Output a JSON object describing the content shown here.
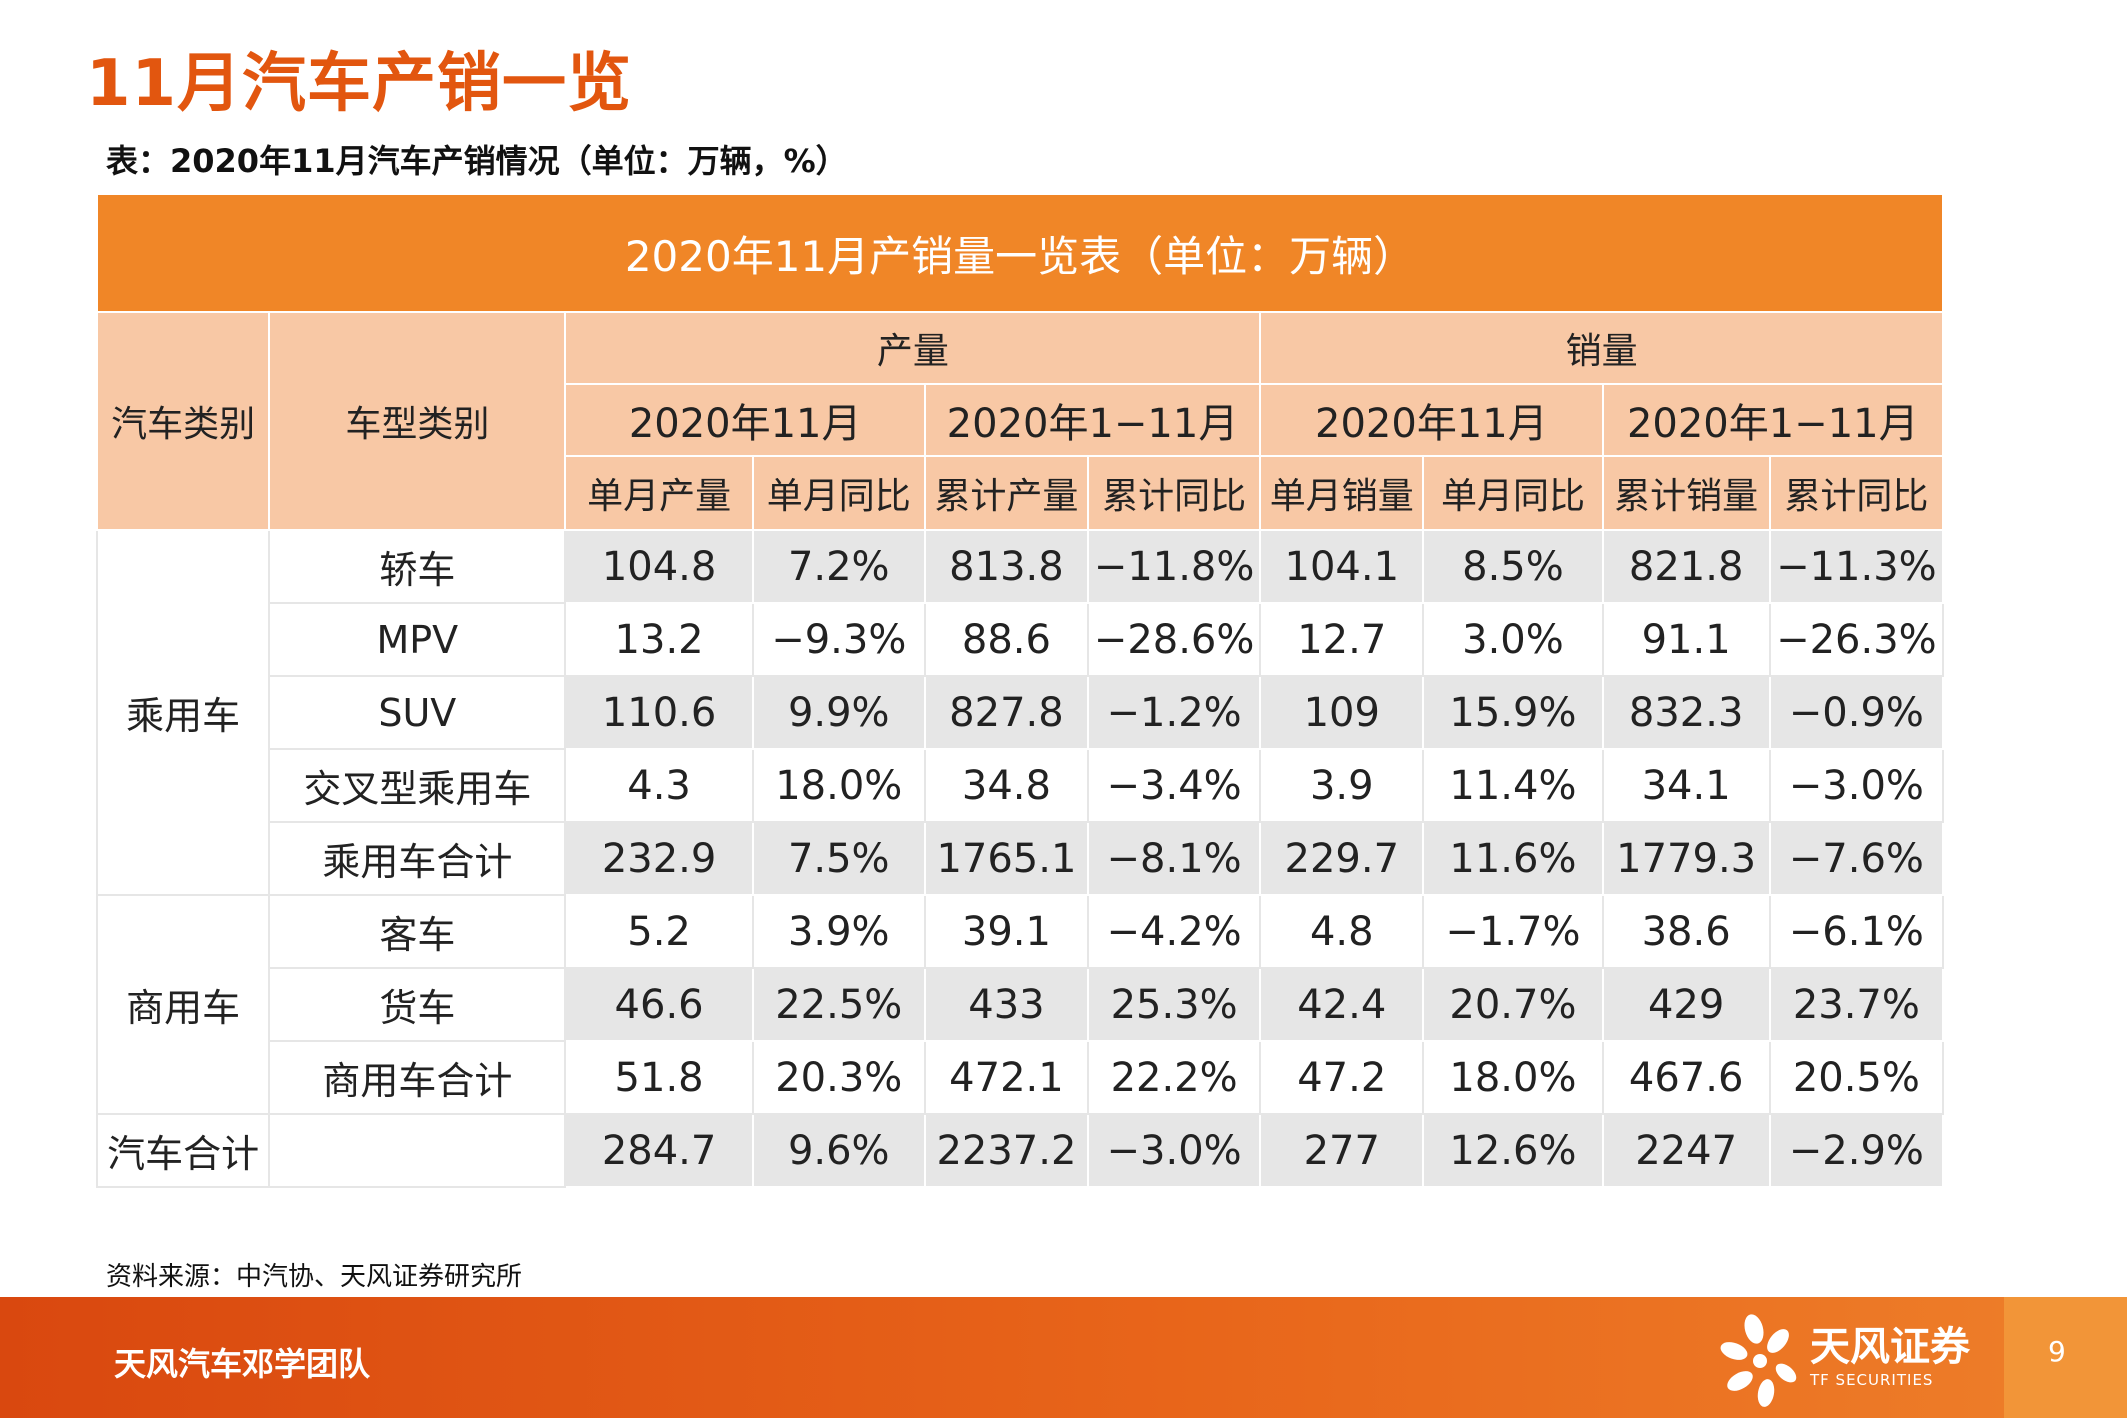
{
  "page": {
    "title": "11月汽车产销一览"
  },
  "caption": "表：2020年11月汽车产销情况（单位：万辆，%）",
  "table": {
    "banner": "2020年11月产销量一览表（单位：万辆）",
    "headers": {
      "vehicle_class": "汽车类别",
      "model_class": "车型类别",
      "production": "产量",
      "sales": "销量",
      "period_month": "2020年11月",
      "period_ytd": "2020年1−11月",
      "cols": [
        "单月产量",
        "单月同比",
        "累计产量",
        "累计同比",
        "单月销量",
        "单月同比",
        "累计销量",
        "累计同比"
      ]
    },
    "groups": {
      "passenger": "乘用车",
      "commercial": "商用车",
      "total": "汽车合计"
    },
    "rows": [
      {
        "model": "轿车",
        "values": [
          "104.8",
          "7.2%",
          "813.8",
          "−11.8%",
          "104.1",
          "8.5%",
          "821.8",
          "−11.3%"
        ]
      },
      {
        "model": "MPV",
        "values": [
          "13.2",
          "−9.3%",
          "88.6",
          "−28.6%",
          "12.7",
          "3.0%",
          "91.1",
          "−26.3%"
        ]
      },
      {
        "model": "SUV",
        "values": [
          "110.6",
          "9.9%",
          "827.8",
          "−1.2%",
          "109",
          "15.9%",
          "832.3",
          "−0.9%"
        ]
      },
      {
        "model": "交叉型乘用车",
        "values": [
          "4.3",
          "18.0%",
          "34.8",
          "−3.4%",
          "3.9",
          "11.4%",
          "34.1",
          "−3.0%"
        ]
      },
      {
        "model": "乘用车合计",
        "values": [
          "232.9",
          "7.5%",
          "1765.1",
          "−8.1%",
          "229.7",
          "11.6%",
          "1779.3",
          "−7.6%"
        ]
      },
      {
        "model": "客车",
        "values": [
          "5.2",
          "3.9%",
          "39.1",
          "−4.2%",
          "4.8",
          "−1.7%",
          "38.6",
          "−6.1%"
        ]
      },
      {
        "model": "货车",
        "values": [
          "46.6",
          "22.5%",
          "433",
          "25.3%",
          "42.4",
          "20.7%",
          "429",
          "23.7%"
        ]
      },
      {
        "model": "商用车合计",
        "values": [
          "51.8",
          "20.3%",
          "472.1",
          "22.2%",
          "47.2",
          "18.0%",
          "467.6",
          "20.5%"
        ]
      },
      {
        "model": "",
        "values": [
          "284.7",
          "9.6%",
          "2237.2",
          "−3.0%",
          "277",
          "12.6%",
          "2247",
          "−2.9%"
        ]
      }
    ]
  },
  "source": "资料来源：中汽协、天风证券研究所",
  "footer": {
    "team": "天风汽车邓学团队",
    "brand_cn": "天风证券",
    "brand_en": "TF SECURITIES",
    "page_number": "9",
    "logo_icon": "flower-logo-icon"
  },
  "colors": {
    "title": "#e2560f",
    "banner": "#f08627",
    "header": "#f8c8a5",
    "row_shade": "#e6e6e6",
    "footer": "#e8651a"
  }
}
